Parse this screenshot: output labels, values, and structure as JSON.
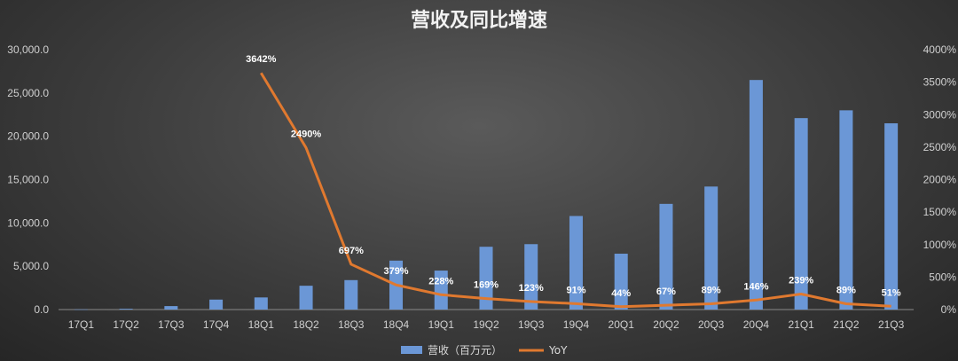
{
  "chart_data": {
    "type": "bar",
    "title": "营收及同比增速",
    "categories": [
      "17Q1",
      "17Q2",
      "17Q3",
      "17Q4",
      "18Q1",
      "18Q2",
      "18Q3",
      "18Q4",
      "19Q1",
      "19Q2",
      "19Q3",
      "19Q4",
      "20Q1",
      "20Q2",
      "20Q3",
      "20Q4",
      "21Q1",
      "21Q2",
      "21Q3"
    ],
    "series": [
      {
        "name": "营收（百万元）",
        "type": "bar",
        "axis": "left",
        "color": "#6b97d6",
        "values": [
          20,
          90,
          400,
          1150,
          1400,
          2750,
          3400,
          5650,
          4500,
          7250,
          7550,
          10800,
          6450,
          12200,
          14200,
          26500,
          22100,
          23000,
          21500
        ]
      },
      {
        "name": "YoY",
        "type": "line",
        "axis": "right",
        "color": "#e0792f",
        "values": [
          null,
          null,
          null,
          null,
          3642,
          2490,
          697,
          379,
          228,
          169,
          123,
          91,
          44,
          67,
          89,
          146,
          239,
          89,
          51
        ],
        "labels": [
          "",
          "",
          "",
          "",
          "3642%",
          "2490%",
          "697%",
          "379%",
          "228%",
          "169%",
          "123%",
          "91%",
          "44%",
          "67%",
          "89%",
          "146%",
          "239%",
          "89%",
          "51%"
        ]
      }
    ],
    "yaxis_left": {
      "min": 0,
      "max": 30000,
      "ticks": [
        0,
        5000,
        10000,
        15000,
        20000,
        25000,
        30000
      ],
      "tick_labels": [
        "0.0",
        "5,000.0",
        "10,000.0",
        "15,000.0",
        "20,000.0",
        "25,000.0",
        "30,000.0"
      ]
    },
    "yaxis_right": {
      "min": 0,
      "max": 4000,
      "ticks": [
        0,
        500,
        1000,
        1500,
        2000,
        2500,
        3000,
        3500,
        4000
      ],
      "tick_labels": [
        "0%",
        "500%",
        "1000%",
        "1500%",
        "2000%",
        "2500%",
        "3000%",
        "3500%",
        "4000%"
      ]
    },
    "grid": false,
    "legend_position": "bottom-center"
  }
}
